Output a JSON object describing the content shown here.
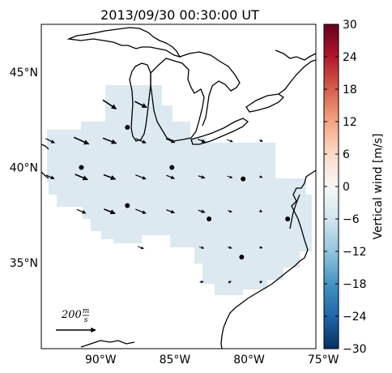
{
  "title": "2013/09/30 00:30:00 UT",
  "lat_labels": [
    "45°N",
    "40°N",
    "35°N"
  ],
  "lat_values": [
    45,
    40,
    35
  ],
  "lon_labels": [
    "90°W",
    "85°W",
    "80°W",
    "75°W"
  ],
  "lon_values": [
    -90,
    -85,
    -80,
    -75
  ],
  "map_extent": {
    "lon_min": -94,
    "lon_max": -75.5,
    "lat_min": 30.5,
    "lat_max": 47.5
  },
  "colorbar": {
    "label": "Vertical wind [m/s]",
    "min": -30,
    "max": 30,
    "ticks": [
      "30",
      "24",
      "18",
      "12",
      "6",
      "0",
      "−6",
      "−12",
      "−18",
      "−24",
      "−30"
    ],
    "tick_values": [
      30,
      24,
      18,
      12,
      6,
      0,
      -6,
      -12,
      -18,
      -24,
      -30
    ],
    "colormap": "RdBu_r",
    "colors": [
      "#053061",
      "#2166ac",
      "#4393c3",
      "#92c5de",
      "#d1e5f0",
      "#f7f7f7",
      "#fddbc7",
      "#f4a582",
      "#d6604d",
      "#b2182b",
      "#67001f"
    ]
  },
  "field_color": "#dde9f1",
  "reference_vector": {
    "label": "200 m/s",
    "numerator": "m",
    "denominator": "s",
    "value": "200"
  },
  "stations": [
    {
      "lon": -88.2,
      "lat": 42.1
    },
    {
      "lon": -91.3,
      "lat": 40.0
    },
    {
      "lon": -85.2,
      "lat": 40.0
    },
    {
      "lon": -80.4,
      "lat": 39.4
    },
    {
      "lon": -88.2,
      "lat": 38.0
    },
    {
      "lon": -82.7,
      "lat": 37.3
    },
    {
      "lon": -77.4,
      "lat": 37.3
    },
    {
      "lon": -80.5,
      "lat": 35.3
    }
  ],
  "wind_vectors": [
    {
      "lon": -89.4,
      "lat": 43.3,
      "u": 90,
      "v": -60
    },
    {
      "lon": -87.3,
      "lat": 43.3,
      "u": 80,
      "v": -40
    },
    {
      "lon": -93.4,
      "lat": 41.4,
      "u": 60,
      "v": -30
    },
    {
      "lon": -91.3,
      "lat": 41.4,
      "u": 100,
      "v": -45
    },
    {
      "lon": -89.4,
      "lat": 41.4,
      "u": 90,
      "v": -35
    },
    {
      "lon": -87.3,
      "lat": 41.4,
      "u": 70,
      "v": -30
    },
    {
      "lon": -85.3,
      "lat": 41.4,
      "u": 60,
      "v": -25
    },
    {
      "lon": -83.2,
      "lat": 41.4,
      "u": 50,
      "v": -20
    },
    {
      "lon": -81.3,
      "lat": 41.4,
      "u": 40,
      "v": -15
    },
    {
      "lon": -79.2,
      "lat": 41.4,
      "u": 25,
      "v": -10
    },
    {
      "lon": -93.4,
      "lat": 39.5,
      "u": 55,
      "v": -25
    },
    {
      "lon": -91.3,
      "lat": 39.5,
      "u": 85,
      "v": -35
    },
    {
      "lon": -89.4,
      "lat": 39.5,
      "u": 80,
      "v": -30
    },
    {
      "lon": -87.3,
      "lat": 39.5,
      "u": 70,
      "v": -28
    },
    {
      "lon": -85.3,
      "lat": 39.5,
      "u": 55,
      "v": -22
    },
    {
      "lon": -83.2,
      "lat": 39.5,
      "u": 45,
      "v": -15
    },
    {
      "lon": -81.3,
      "lat": 39.5,
      "u": 35,
      "v": -12
    },
    {
      "lon": -79.2,
      "lat": 39.5,
      "u": 20,
      "v": -8
    },
    {
      "lon": -91.3,
      "lat": 37.7,
      "u": 60,
      "v": -25
    },
    {
      "lon": -89.4,
      "lat": 37.7,
      "u": 75,
      "v": -30
    },
    {
      "lon": -87.3,
      "lat": 37.7,
      "u": 70,
      "v": -28
    },
    {
      "lon": -85.3,
      "lat": 37.7,
      "u": 55,
      "v": -20
    },
    {
      "lon": -83.2,
      "lat": 37.7,
      "u": 45,
      "v": -14
    },
    {
      "lon": -81.3,
      "lat": 37.7,
      "u": 30,
      "v": -10
    },
    {
      "lon": -79.2,
      "lat": 37.7,
      "u": 18,
      "v": -6
    },
    {
      "lon": -87.3,
      "lat": 35.8,
      "u": 40,
      "v": -15
    },
    {
      "lon": -83.2,
      "lat": 35.8,
      "u": 32,
      "v": -10
    },
    {
      "lon": -81.3,
      "lat": 35.8,
      "u": 28,
      "v": -8
    },
    {
      "lon": -79.2,
      "lat": 35.8,
      "u": 20,
      "v": -6
    },
    {
      "lon": -83.2,
      "lat": 34.0,
      "u": 25,
      "v": 5
    },
    {
      "lon": -81.3,
      "lat": 34.0,
      "u": 20,
      "v": 10
    },
    {
      "lon": -79.2,
      "lat": 34.0,
      "u": 18,
      "v": 8
    }
  ]
}
